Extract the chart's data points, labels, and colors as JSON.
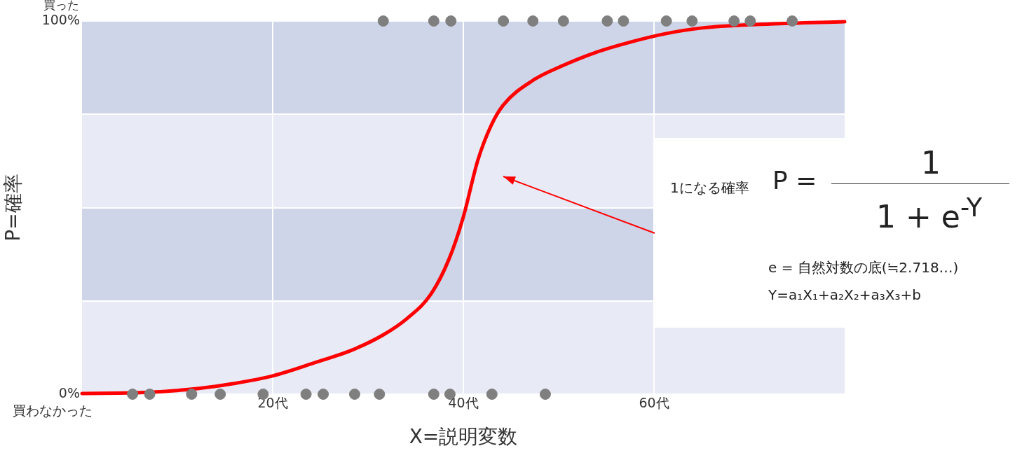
{
  "chart_data": {
    "type": "scatter",
    "xlabel": "X=説明変数",
    "ylabel": "P=確率",
    "xlim": [
      0,
      80
    ],
    "xticks": [
      {
        "value": 20,
        "label": "20代"
      },
      {
        "value": 40,
        "label": "40代"
      },
      {
        "value": 60,
        "label": "60代"
      }
    ],
    "ylim": [
      0,
      100
    ],
    "yticks": [
      {
        "value": 0,
        "label": "0%"
      },
      {
        "value": 25,
        "label": null
      },
      {
        "value": 50,
        "label": null
      },
      {
        "value": 75,
        "label": null
      },
      {
        "value": 100,
        "label": "100%"
      }
    ],
    "grid": true,
    "legend": false,
    "marker": "circle",
    "bands": [
      {
        "axis": "y",
        "from": 25,
        "to": 50,
        "color": "#cfd5e8"
      },
      {
        "axis": "y",
        "from": 75,
        "to": 100,
        "color": "#cfd5e8"
      }
    ],
    "series": [
      {
        "color": "#7f7f7f",
        "x": [
          31.6,
          36.9,
          38.7,
          44.2,
          47.3,
          50.5,
          55.1,
          56.8,
          61.3,
          64.0,
          68.4,
          70.1,
          74.5,
          5.3,
          7.1,
          11.5,
          14.5,
          19.0,
          23.5,
          25.3,
          28.6,
          31.2,
          36.9,
          38.6,
          43.0,
          48.6
        ],
        "values": [
          100,
          100,
          100,
          100,
          100,
          100,
          100,
          100,
          100,
          100,
          100,
          100,
          100,
          0,
          0,
          0,
          0,
          0,
          0,
          0,
          0,
          0,
          0,
          0,
          0,
          0
        ]
      },
      {
        "type": "line",
        "color": "#ff0000",
        "marker": "none",
        "x": [
          0,
          6.1,
          12.1,
          15.8,
          20,
          24.6,
          28.3,
          31.6,
          34.1,
          36.6,
          38.5,
          40,
          41.5,
          42.9,
          44.2,
          47.3,
          50.2,
          53.9,
          57.6,
          61.2,
          64.9,
          72.2,
          80
        ],
        "values": [
          0.2,
          0.4,
          1.5,
          2.8,
          4.9,
          8.6,
          11.8,
          15.9,
          20.3,
          26.8,
          36.2,
          47.5,
          62.5,
          71.9,
          77.5,
          84.1,
          87.8,
          91.6,
          94.4,
          96.6,
          98.1,
          99.2,
          99.8
        ]
      }
    ],
    "annotations": [
      "1になる確率",
      "P =",
      "1",
      "1 + e$^{-Y}$",
      "e = 自然対数の底(≒2.718…)",
      "Y=a₁X₁+a₂X₂+a₃X₃+b",
      "買った",
      "買わなかった"
    ]
  }
}
